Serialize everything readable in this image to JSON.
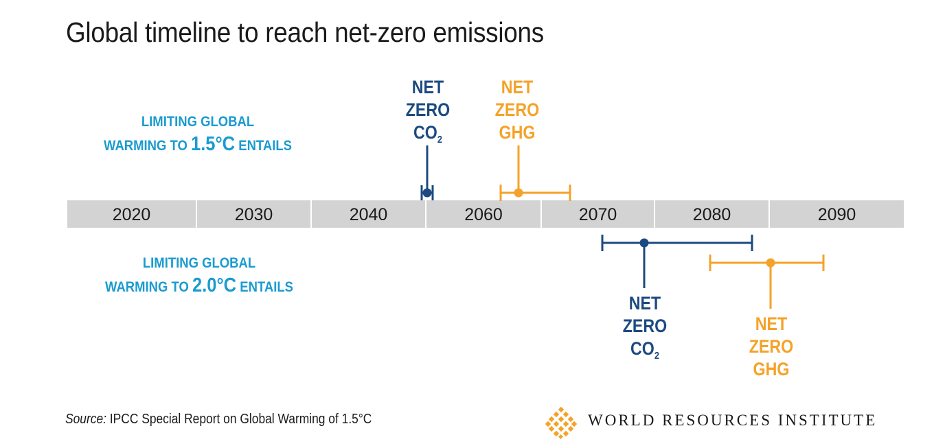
{
  "chart_data": {
    "type": "timeline-range",
    "title": "Global timeline to reach net-zero emissions",
    "axis": {
      "tick_labels": [
        "2020",
        "2030",
        "2040",
        "2060",
        "2070",
        "2080",
        "2090"
      ]
    },
    "scenarios": [
      {
        "id": "1.5",
        "label_line1": "LIMITING GLOBAL",
        "label_prefix": "WARMING TO ",
        "label_temp": "1.5°C",
        "label_suffix": " ENTAILS",
        "position": "above-axis",
        "milestones": [
          {
            "name": "NET ZERO CO2",
            "label_lines": [
              "NET",
              "ZERO",
              "CO"
            ],
            "subscript": "2",
            "color": "#1c4a80",
            "low": 2045,
            "mid": 2050,
            "high": 2055
          },
          {
            "name": "NET ZERO GHG",
            "label_lines": [
              "NET",
              "ZERO",
              "GHG"
            ],
            "subscript": "",
            "color": "#f5a228",
            "low": 2061,
            "mid": 2063,
            "high": 2068
          }
        ]
      },
      {
        "id": "2.0",
        "label_line1": "LIMITING GLOBAL",
        "label_prefix": "WARMING TO ",
        "label_temp": "2.0°C",
        "label_suffix": " ENTAILS",
        "position": "below-axis",
        "milestones": [
          {
            "name": "NET ZERO CO2",
            "label_lines": [
              "NET",
              "ZERO",
              "CO"
            ],
            "subscript": "2",
            "color": "#1c4a80",
            "low": 2070,
            "mid": 2075,
            "high": 2083
          },
          {
            "name": "NET ZERO GHG",
            "label_lines": [
              "NET",
              "ZERO",
              "GHG"
            ],
            "subscript": "",
            "color": "#f5a228",
            "low": 2079,
            "mid": 2084,
            "high": 2089
          }
        ]
      }
    ]
  },
  "colors": {
    "axis_band": "#d3d3d3",
    "co2": "#1c4a80",
    "ghg": "#f5a228",
    "scenario_label": "#1a9bd0"
  },
  "footer": {
    "source_prefix": "Source:",
    "source_text": " IPCC Special Report on Global Warming of 1.5°C",
    "org_name": "WORLD RESOURCES INSTITUTE"
  }
}
